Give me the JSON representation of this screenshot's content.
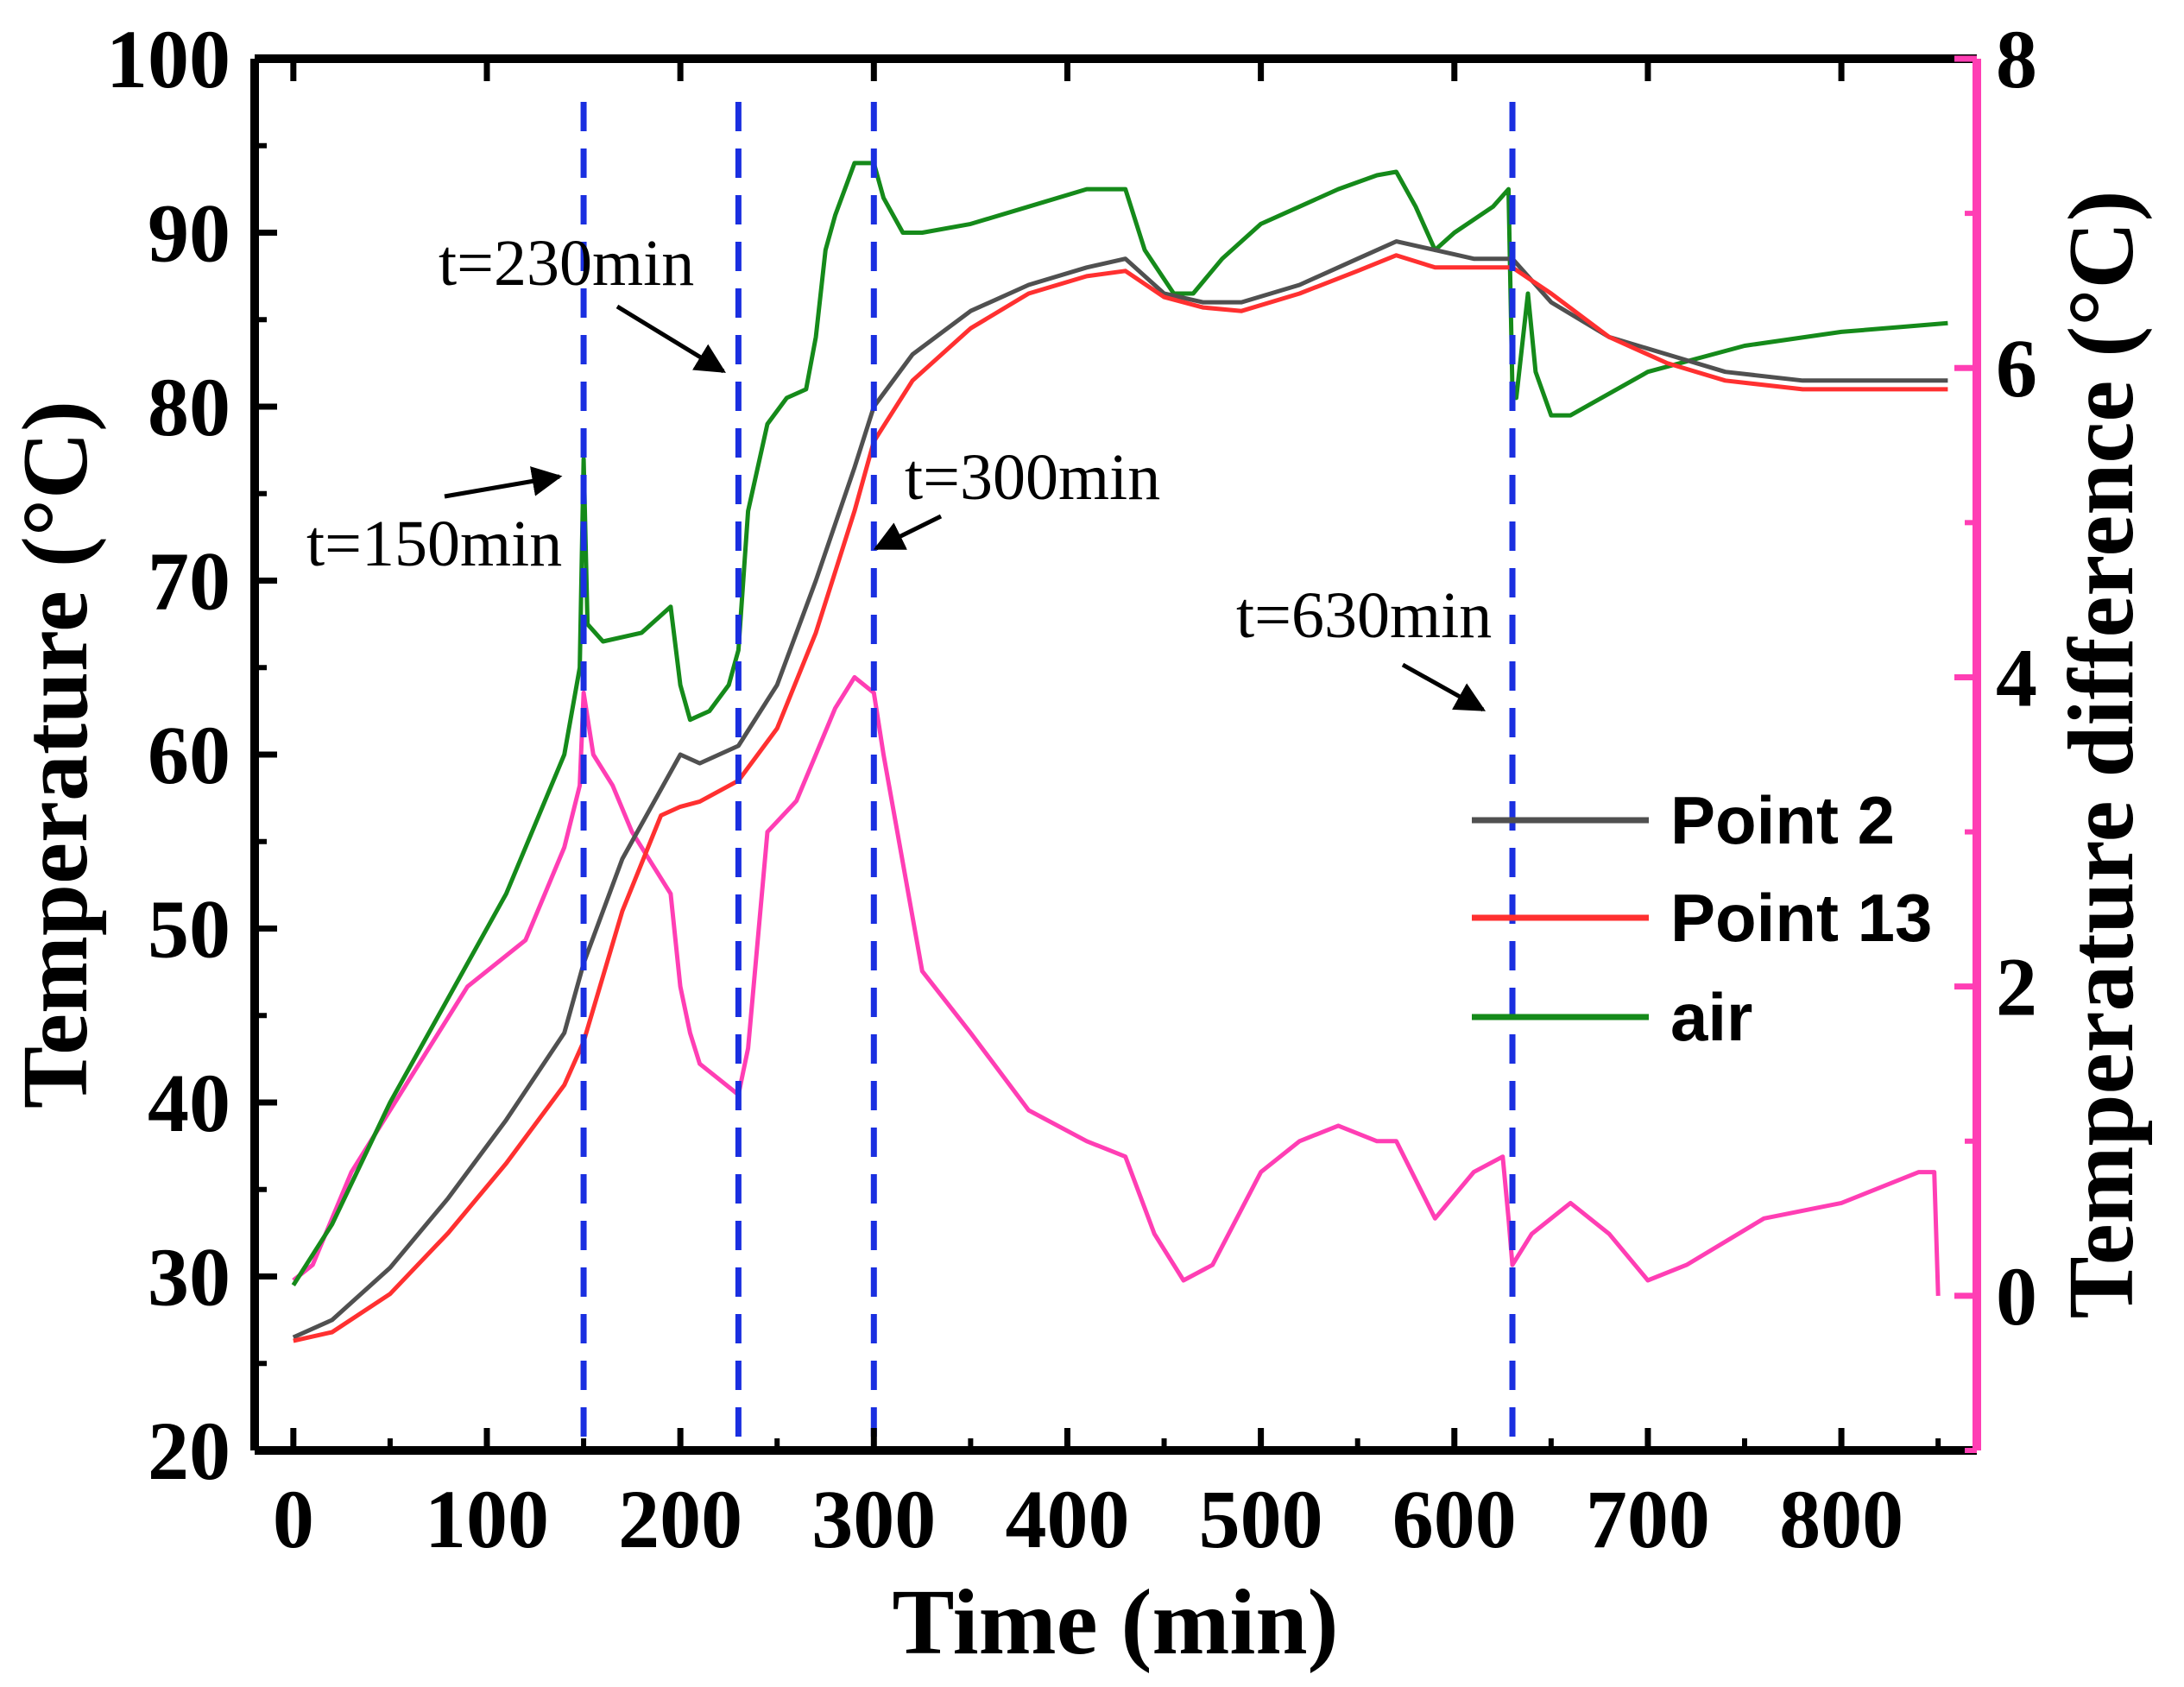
{
  "chart_data": {
    "type": "line",
    "title": "",
    "xlabel": "Time (min)",
    "ylabel_left": "Temperature (°C)",
    "ylabel_right": "Temperature difference (°C)",
    "xlim": [
      -20,
      870
    ],
    "ylim_left": [
      20,
      100
    ],
    "ylim_right": [
      -1,
      8
    ],
    "x_ticks": [
      0,
      100,
      200,
      300,
      400,
      500,
      600,
      700,
      800
    ],
    "y_ticks_left": [
      20,
      30,
      40,
      50,
      60,
      70,
      80,
      90,
      100
    ],
    "y_ticks_right": [
      0,
      2,
      4,
      6,
      8
    ],
    "legend_position": "center-right",
    "series": [
      {
        "name": "Point 2",
        "axis": "left",
        "color": "#505050",
        "x": [
          0,
          20,
          50,
          80,
          110,
          140,
          150,
          170,
          190,
          200,
          210,
          230,
          250,
          270,
          290,
          300,
          320,
          350,
          380,
          410,
          430,
          450,
          470,
          490,
          520,
          550,
          570,
          590,
          610,
          630,
          650,
          680,
          710,
          740,
          780,
          820,
          855
        ],
        "values": [
          26.5,
          27.5,
          30.5,
          34.5,
          39,
          44,
          48,
          54,
          58,
          60,
          59.5,
          60.5,
          64,
          70,
          76.5,
          80,
          83,
          85.5,
          87,
          88,
          88.5,
          86.5,
          86,
          86,
          87,
          88.5,
          89.5,
          89,
          88.5,
          88.5,
          86,
          84,
          83,
          82,
          81.5,
          81.5,
          81.5
        ]
      },
      {
        "name": "Point 13",
        "axis": "left",
        "color": "#ff3030",
        "x": [
          0,
          20,
          50,
          80,
          110,
          140,
          150,
          170,
          190,
          200,
          210,
          230,
          250,
          270,
          290,
          300,
          320,
          350,
          380,
          410,
          430,
          450,
          470,
          490,
          520,
          550,
          570,
          590,
          610,
          630,
          650,
          680,
          710,
          740,
          780,
          820,
          855
        ],
        "values": [
          26.3,
          26.8,
          29,
          32.5,
          36.5,
          41,
          43.5,
          51,
          56.5,
          57,
          57.3,
          58.5,
          61.5,
          67,
          74,
          78,
          81.5,
          84.5,
          86.5,
          87.5,
          87.8,
          86.3,
          85.7,
          85.5,
          86.5,
          87.8,
          88.7,
          88,
          88,
          88,
          86.5,
          84,
          82.5,
          81.5,
          81,
          81,
          81
        ]
      },
      {
        "name": "air",
        "axis": "left",
        "color": "#158a1a",
        "x": [
          0,
          20,
          50,
          80,
          110,
          140,
          148,
          150,
          152,
          160,
          180,
          195,
          200,
          205,
          215,
          225,
          230,
          235,
          245,
          255,
          265,
          270,
          275,
          280,
          290,
          300,
          305,
          315,
          325,
          350,
          380,
          410,
          430,
          440,
          455,
          465,
          480,
          500,
          520,
          540,
          560,
          570,
          580,
          590,
          600,
          620,
          628,
          630,
          632,
          638,
          642,
          650,
          660,
          700,
          750,
          800,
          855
        ],
        "values": [
          29.5,
          33,
          40,
          46,
          52,
          60,
          65,
          77,
          67.5,
          66.5,
          67,
          68.5,
          64,
          62,
          62.5,
          64,
          66,
          74,
          79,
          80.5,
          81,
          84,
          89,
          91,
          94,
          94,
          92,
          90,
          90,
          90.5,
          91.5,
          92.5,
          92.5,
          89,
          86.5,
          86.5,
          88.5,
          90.5,
          91.5,
          92.5,
          93.3,
          93.5,
          91.5,
          89,
          90,
          91.5,
          92.5,
          81,
          80.5,
          86.5,
          82,
          79.5,
          79.5,
          82,
          83.5,
          84.3,
          84.8
        ]
      },
      {
        "name": "Temperature difference",
        "axis": "right",
        "color": "#ff3eb4",
        "legend": false,
        "x": [
          0,
          10,
          30,
          60,
          90,
          120,
          140,
          148,
          150,
          155,
          165,
          175,
          185,
          195,
          200,
          205,
          210,
          220,
          230,
          235,
          245,
          260,
          270,
          280,
          290,
          300,
          305,
          315,
          325,
          350,
          380,
          410,
          430,
          445,
          460,
          475,
          500,
          520,
          540,
          560,
          570,
          590,
          610,
          625,
          628,
          630,
          640,
          660,
          680,
          700,
          720,
          760,
          800,
          840,
          848,
          850
        ],
        "values": [
          0.1,
          0.2,
          0.8,
          1.4,
          2.0,
          2.3,
          2.9,
          3.3,
          3.9,
          3.5,
          3.3,
          3.0,
          2.8,
          2.6,
          2.0,
          1.7,
          1.5,
          1.4,
          1.3,
          1.6,
          3.0,
          3.2,
          3.5,
          3.8,
          4.0,
          3.9,
          3.5,
          2.8,
          2.1,
          1.7,
          1.2,
          1.0,
          0.9,
          0.4,
          0.1,
          0.2,
          0.8,
          1.0,
          1.1,
          1.0,
          1.0,
          0.5,
          0.8,
          0.9,
          0.5,
          0.2,
          0.4,
          0.6,
          0.4,
          0.1,
          0.2,
          0.5,
          0.6,
          0.8,
          0.8,
          0.0
        ]
      }
    ],
    "vertical_markers": [
      {
        "x": 150,
        "label": "t=150min",
        "color": "#1a2fe0"
      },
      {
        "x": 230,
        "label": "t=230min",
        "color": "#1a2fe0"
      },
      {
        "x": 300,
        "label": "t=300min",
        "color": "#1a2fe0"
      },
      {
        "x": 630,
        "label": "t=630min",
        "color": "#1a2fe0"
      }
    ],
    "colors": {
      "axes": "#000000",
      "right_axis": "#ff3eb4",
      "marker": "#1a2fe0"
    }
  }
}
